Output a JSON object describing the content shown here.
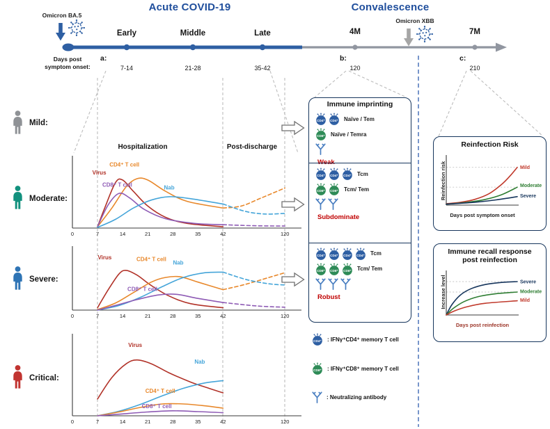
{
  "header": {
    "acute_title": "Acute COVID-19",
    "convalescence_title": "Convalescence",
    "omicron_ba5": "Omicron BA.5",
    "omicron_xbb": "Omicron XBB",
    "early": "Early",
    "middle": "Middle",
    "late": "Late",
    "m4": "4M",
    "m7": "7M",
    "days_label_1": "Days post",
    "days_label_2": "symptom onset:",
    "a": "a:",
    "b": "b:",
    "c": "c:",
    "a_days_1": "7-14",
    "a_days_2": "21-28",
    "a_days_3": "35-42",
    "b_days": "120",
    "c_days": "210"
  },
  "severity": {
    "mild": "Mild:",
    "moderate": "Moderate:",
    "severe": "Severe:",
    "critical": "Critical:"
  },
  "sections": {
    "hospitalization": "Hospitalization",
    "post_discharge": "Post-discharge"
  },
  "imprinting": {
    "title": "Immune imprinting",
    "sections": [
      {
        "cd4_count": 2,
        "cd4_label": "Naïve / Tem",
        "cd8_count": 1,
        "cd8_label": "Naïve / Temra",
        "ab_count": 1,
        "strength": "Weak"
      },
      {
        "cd4_count": 3,
        "cd4_label": "Tcm",
        "cd8_count": 2,
        "cd8_label": "Tcm/ Tem",
        "ab_count": 2,
        "strength": "Subdominate"
      },
      {
        "cd4_count": 4,
        "cd4_label": "Tcm",
        "cd8_count": 3,
        "cd8_label": "Tcm/ Tem",
        "ab_count": 3,
        "strength": "Robust"
      }
    ]
  },
  "legend": {
    "cd4_badge": "CD4⁺",
    "cd8_badge": "CD8⁺",
    "cd4_text": ": IFNγ⁺CD4⁺ memory T cell",
    "cd8_text": ": IFNγ⁺CD8⁺ memory T cell",
    "nab_text": ": Neutralizing antibody"
  },
  "colors": {
    "accent_title": "#1f4e9c",
    "timeline": "#2e5fa3",
    "virus": "#2e5fa3",
    "xbb_arrow": "#a6a6a6",
    "mild": "#8f9296",
    "moderate": "#12917e",
    "severe": "#2e74b5",
    "critical": "#c13431",
    "cd4_cell": "#2e5fa3",
    "cd8_cell": "#2e8b57",
    "antibody": "#4a7fc1",
    "strength": "#c00000"
  },
  "chart_data": [
    {
      "id": "moderate_kinetics",
      "type": "line",
      "xticks": [
        0,
        7,
        14,
        21,
        28,
        35,
        42,
        120
      ],
      "x_note": "days post symptom onset, axis compressed after day 42",
      "series": [
        {
          "name": "Virus",
          "color": "#b13228",
          "points": [
            [
              7,
              0.02
            ],
            [
              9,
              0.3
            ],
            [
              12,
              0.68
            ],
            [
              14,
              0.72
            ],
            [
              17,
              0.55
            ],
            [
              21,
              0.33
            ],
            [
              26,
              0.16
            ],
            [
              32,
              0.07
            ],
            [
              42,
              0.02
            ]
          ]
        },
        {
          "name": "CD4+ T cell",
          "color": "#e8882b",
          "points": [
            [
              7,
              0.02
            ],
            [
              11,
              0.3
            ],
            [
              15,
              0.62
            ],
            [
              18,
              0.74
            ],
            [
              21,
              0.72
            ],
            [
              26,
              0.55
            ],
            [
              32,
              0.4
            ],
            [
              42,
              0.3
            ]
          ]
        },
        {
          "name": "CD4+ T cell (projected)",
          "color": "#e8882b",
          "dashed": true,
          "points": [
            [
              42,
              0.3
            ],
            [
              65,
              0.33
            ],
            [
              90,
              0.45
            ],
            [
              120,
              0.6
            ]
          ]
        },
        {
          "name": "CD8+ T cell",
          "color": "#8e5bb5",
          "points": [
            [
              7,
              0.02
            ],
            [
              10,
              0.35
            ],
            [
              13,
              0.52
            ],
            [
              16,
              0.45
            ],
            [
              20,
              0.28
            ],
            [
              26,
              0.14
            ],
            [
              34,
              0.07
            ],
            [
              42,
              0.05
            ]
          ]
        },
        {
          "name": "CD8+ T cell (projected)",
          "color": "#8e5bb5",
          "dashed": true,
          "points": [
            [
              42,
              0.05
            ],
            [
              80,
              0.035
            ],
            [
              120,
              0.03
            ]
          ]
        },
        {
          "name": "Nab",
          "color": "#45a5d9",
          "points": [
            [
              7,
              0.01
            ],
            [
              12,
              0.13
            ],
            [
              17,
              0.3
            ],
            [
              22,
              0.42
            ],
            [
              27,
              0.47
            ],
            [
              33,
              0.44
            ],
            [
              42,
              0.36
            ]
          ]
        },
        {
          "name": "Nab (projected)",
          "color": "#45a5d9",
          "dashed": true,
          "points": [
            [
              42,
              0.36
            ],
            [
              70,
              0.25
            ],
            [
              95,
              0.21
            ],
            [
              120,
              0.22
            ]
          ]
        }
      ],
      "annotations": [
        {
          "text": "CD4⁺ T cell",
          "color": "#e8882b",
          "day": 14.5,
          "level": 0.92
        },
        {
          "text": "Virus",
          "color": "#b13228",
          "day": 7.5,
          "level": 0.8
        },
        {
          "text": "CD8⁺ T cell",
          "color": "#8e5bb5",
          "day": 12.5,
          "level": 0.62
        },
        {
          "text": "Nab",
          "color": "#45a5d9",
          "day": 27,
          "level": 0.58
        }
      ]
    },
    {
      "id": "severe_kinetics",
      "type": "line",
      "xticks": [
        0,
        7,
        14,
        21,
        28,
        35,
        42,
        120
      ],
      "series": [
        {
          "name": "Virus",
          "color": "#b13228",
          "points": [
            [
              7,
              0.04
            ],
            [
              10,
              0.35
            ],
            [
              13,
              0.62
            ],
            [
              15,
              0.68
            ],
            [
              18,
              0.6
            ],
            [
              22,
              0.42
            ],
            [
              27,
              0.24
            ],
            [
              33,
              0.11
            ],
            [
              42,
              0.04
            ]
          ]
        },
        {
          "name": "CD4+ T cell",
          "color": "#e8882b",
          "points": [
            [
              7,
              0.01
            ],
            [
              12,
              0.12
            ],
            [
              17,
              0.3
            ],
            [
              22,
              0.48
            ],
            [
              26,
              0.56
            ],
            [
              30,
              0.57
            ],
            [
              35,
              0.48
            ],
            [
              42,
              0.35
            ]
          ]
        },
        {
          "name": "CD4+ T cell (projected)",
          "color": "#e8882b",
          "dashed": true,
          "points": [
            [
              42,
              0.35
            ],
            [
              70,
              0.44
            ],
            [
              100,
              0.56
            ],
            [
              120,
              0.64
            ]
          ]
        },
        {
          "name": "Nab",
          "color": "#45a5d9",
          "points": [
            [
              7,
              0.0
            ],
            [
              13,
              0.08
            ],
            [
              19,
              0.22
            ],
            [
              25,
              0.4
            ],
            [
              31,
              0.56
            ],
            [
              37,
              0.64
            ],
            [
              42,
              0.65
            ]
          ]
        },
        {
          "name": "Nab (projected)",
          "color": "#45a5d9",
          "dashed": true,
          "points": [
            [
              42,
              0.65
            ],
            [
              72,
              0.52
            ],
            [
              100,
              0.45
            ],
            [
              120,
              0.43
            ]
          ]
        },
        {
          "name": "CD8+ T cell",
          "color": "#8e5bb5",
          "points": [
            [
              7,
              0.0
            ],
            [
              12,
              0.08
            ],
            [
              18,
              0.18
            ],
            [
              24,
              0.26
            ],
            [
              29,
              0.27
            ],
            [
              35,
              0.2
            ],
            [
              42,
              0.13
            ]
          ]
        },
        {
          "name": "CD8+ T cell (projected)",
          "color": "#8e5bb5",
          "dashed": true,
          "points": [
            [
              42,
              0.13
            ],
            [
              85,
              0.07
            ],
            [
              120,
              0.05
            ]
          ]
        }
      ],
      "annotations": [
        {
          "text": "Virus",
          "color": "#b13228",
          "day": 9,
          "level": 0.87
        },
        {
          "text": "CD4⁺ T cell",
          "color": "#e8882b",
          "day": 22,
          "level": 0.84
        },
        {
          "text": "Nab",
          "color": "#45a5d9",
          "day": 29.5,
          "level": 0.78
        },
        {
          "text": "CD8⁺ T cell",
          "color": "#8e5bb5",
          "day": 19.5,
          "level": 0.33
        }
      ]
    },
    {
      "id": "critical_kinetics",
      "type": "line",
      "xticks": [
        0,
        7,
        14,
        21,
        28,
        35,
        42,
        120
      ],
      "series": [
        {
          "name": "Virus",
          "color": "#b13228",
          "points": [
            [
              7,
              0.22
            ],
            [
              11,
              0.5
            ],
            [
              15,
              0.68
            ],
            [
              18,
              0.73
            ],
            [
              22,
              0.68
            ],
            [
              27,
              0.56
            ],
            [
              33,
              0.44
            ],
            [
              38,
              0.36
            ],
            [
              42,
              0.3
            ]
          ]
        },
        {
          "name": "Nab",
          "color": "#45a5d9",
          "points": [
            [
              7,
              0.0
            ],
            [
              13,
              0.06
            ],
            [
              19,
              0.15
            ],
            [
              25,
              0.26
            ],
            [
              31,
              0.36
            ],
            [
              37,
              0.43
            ],
            [
              42,
              0.46
            ]
          ]
        },
        {
          "name": "CD4+ T cell",
          "color": "#e8882b",
          "points": [
            [
              7,
              0.0
            ],
            [
              13,
              0.05
            ],
            [
              19,
              0.11
            ],
            [
              25,
              0.155
            ],
            [
              31,
              0.155
            ],
            [
              37,
              0.13
            ],
            [
              42,
              0.1
            ]
          ]
        },
        {
          "name": "CD8+ T cell",
          "color": "#8e5bb5",
          "points": [
            [
              7,
              0.0
            ],
            [
              14,
              0.025
            ],
            [
              21,
              0.05
            ],
            [
              28,
              0.065
            ],
            [
              35,
              0.055
            ],
            [
              42,
              0.04
            ]
          ]
        }
      ],
      "annotations": [
        {
          "text": "Virus",
          "color": "#b13228",
          "day": 17.5,
          "level": 0.9
        },
        {
          "text": "Nab",
          "color": "#45a5d9",
          "day": 35.5,
          "level": 0.68
        },
        {
          "text": "CD4⁺ T cell",
          "color": "#e8882b",
          "day": 24.5,
          "level": 0.3
        },
        {
          "text": "CD8⁺ T cell",
          "color": "#8e5bb5",
          "day": 23.5,
          "level": 0.1
        }
      ]
    },
    {
      "id": "reinfection_risk",
      "type": "line",
      "title": "Reinfection Risk",
      "xlabel": "Days post symptom onset",
      "ylabel": "Reinfection risk",
      "gridlines": [
        0.8,
        0.38
      ],
      "series": [
        {
          "name": "Mild",
          "color": "#c0392b",
          "points": [
            [
              0,
              0.03
            ],
            [
              0.2,
              0.06
            ],
            [
              0.4,
              0.12
            ],
            [
              0.6,
              0.24
            ],
            [
              0.78,
              0.44
            ],
            [
              0.9,
              0.62
            ],
            [
              1,
              0.8
            ]
          ]
        },
        {
          "name": "Moderate",
          "color": "#2e7d32",
          "points": [
            [
              0,
              0.02
            ],
            [
              0.3,
              0.06
            ],
            [
              0.55,
              0.12
            ],
            [
              0.78,
              0.22
            ],
            [
              1,
              0.38
            ]
          ]
        },
        {
          "name": "Severe",
          "color": "#16355c",
          "points": [
            [
              0,
              0.02
            ],
            [
              0.4,
              0.06
            ],
            [
              0.7,
              0.11
            ],
            [
              1,
              0.18
            ]
          ]
        }
      ],
      "right_labels": [
        {
          "text": "Mild",
          "color": "#c0392b",
          "level": 0.8
        },
        {
          "text": "Moderate",
          "color": "#2e7d32",
          "level": 0.42
        },
        {
          "text": "Severe",
          "color": "#16355c",
          "level": 0.2
        }
      ]
    },
    {
      "id": "immune_recall",
      "type": "line",
      "title_line1": "Immune recall response",
      "title_line2": "post reinfection",
      "xlabel": "Days post reinfection",
      "ylabel": "Increase level",
      "gridlines": [
        0.8,
        0.55
      ],
      "series": [
        {
          "name": "Severe",
          "color": "#16355c",
          "points": [
            [
              0,
              0.0
            ],
            [
              0.08,
              0.25
            ],
            [
              0.2,
              0.48
            ],
            [
              0.35,
              0.63
            ],
            [
              0.55,
              0.73
            ],
            [
              0.78,
              0.78
            ],
            [
              1,
              0.8
            ]
          ]
        },
        {
          "name": "Moderate",
          "color": "#2e7d32",
          "points": [
            [
              0,
              0.0
            ],
            [
              0.1,
              0.16
            ],
            [
              0.25,
              0.32
            ],
            [
              0.45,
              0.44
            ],
            [
              0.7,
              0.51
            ],
            [
              1,
              0.55
            ]
          ]
        },
        {
          "name": "Mild",
          "color": "#c0392b",
          "points": [
            [
              0,
              0.0
            ],
            [
              0.12,
              0.1
            ],
            [
              0.3,
              0.2
            ],
            [
              0.55,
              0.28
            ],
            [
              1,
              0.34
            ]
          ]
        }
      ],
      "right_labels": [
        {
          "text": "Severe",
          "color": "#16355c",
          "level": 0.8
        },
        {
          "text": "Moderate",
          "color": "#2e7d32",
          "level": 0.57
        },
        {
          "text": "Mild",
          "color": "#c0392b",
          "level": 0.36
        }
      ]
    }
  ]
}
